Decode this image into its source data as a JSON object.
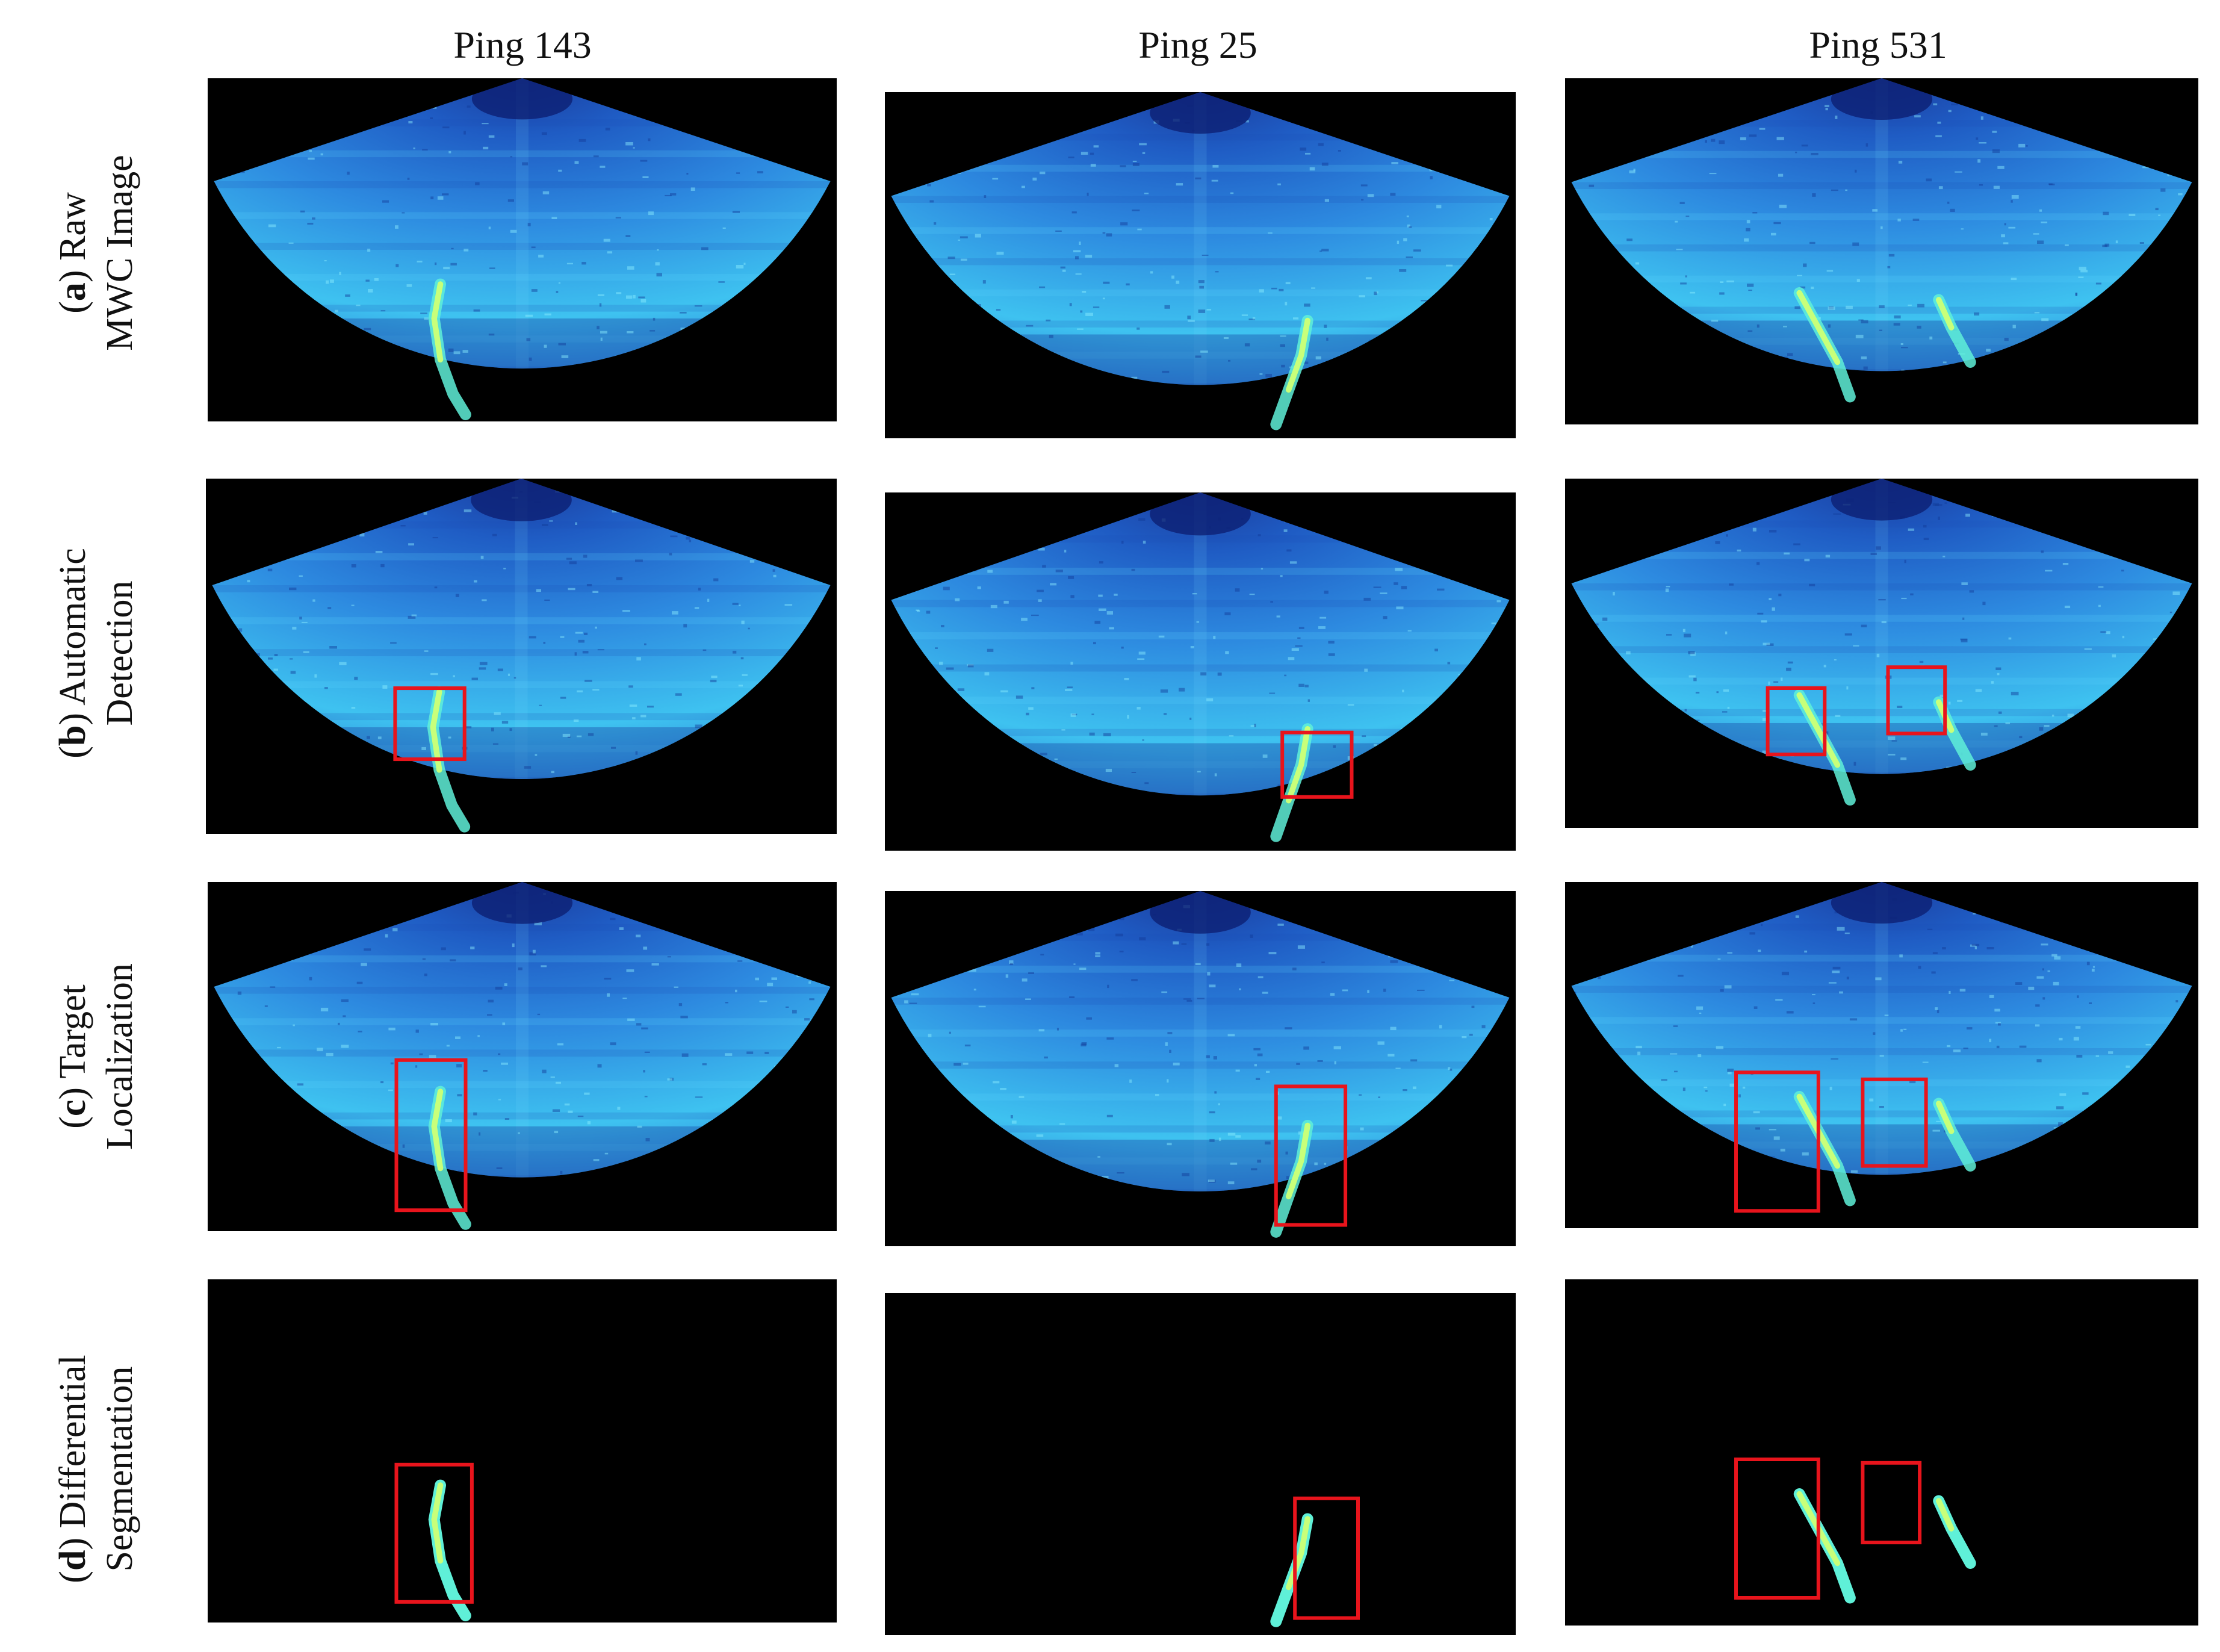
{
  "columns": [
    {
      "title": "Ping 143"
    },
    {
      "title": "Ping 25"
    },
    {
      "title": "Ping 531"
    }
  ],
  "rows": [
    {
      "letter": "a",
      "line1": "Raw",
      "line2": "MWC Image"
    },
    {
      "letter": "b",
      "line1": "Automatic",
      "line2": "Detection"
    },
    {
      "letter": "c",
      "line1": "Target",
      "line2": "Localization"
    },
    {
      "letter": "d",
      "line1": "Differential",
      "line2": "Segmentation"
    }
  ],
  "colors": {
    "background": "#000000",
    "fan_dark": "#1a3d9e",
    "fan_mid": "#2d8ae0",
    "fan_light": "#3ec2f0",
    "plume": "#c8ff7a",
    "plume_edge": "#5ff0d8",
    "box": "#e8141c"
  }
}
